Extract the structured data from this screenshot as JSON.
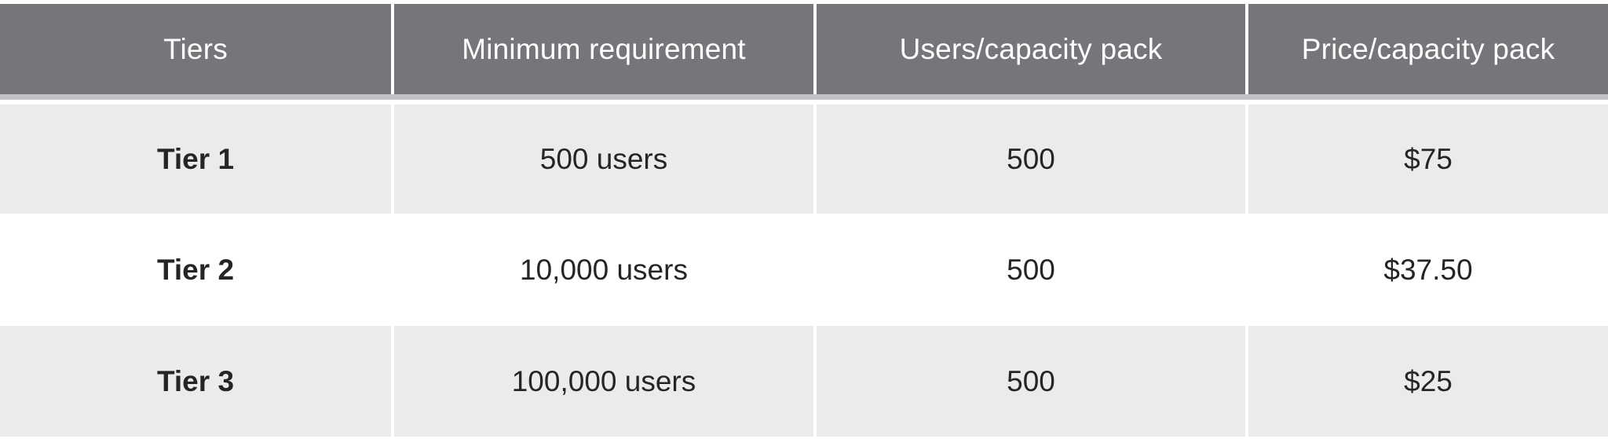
{
  "chart_data": {
    "type": "table",
    "title": "",
    "columns": [
      "Tiers",
      "Minimum requirement",
      "Users/capacity pack",
      "Price/capacity pack"
    ],
    "rows": [
      {
        "cells": [
          "Tier 1",
          "500 users",
          "500",
          "$75"
        ]
      },
      {
        "cells": [
          "Tier 2",
          "10,000 users",
          "500",
          "$37.50"
        ]
      },
      {
        "cells": [
          "Tier 3",
          "100,000 users",
          "500",
          "$25"
        ]
      }
    ],
    "layout_hints": {
      "header_bg": "#76757A",
      "header_text_color": "#FFFFFF",
      "separator_band_color": "#C2C1C5",
      "row_alt_bg": "#EBEBEB",
      "row_bg": "#FFFFFF",
      "body_text_color": "#262524",
      "zebra_striping": true,
      "cell_alignment": "center"
    }
  }
}
